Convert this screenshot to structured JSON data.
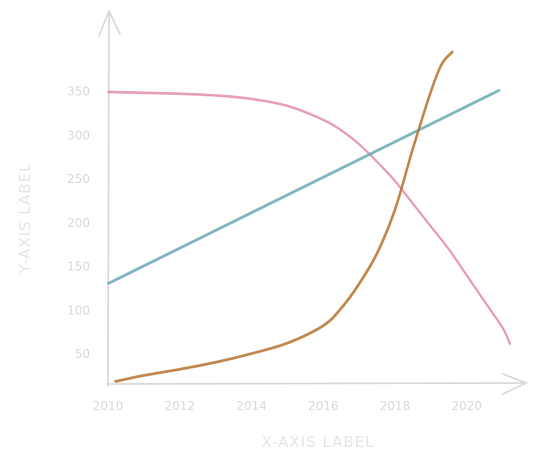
{
  "chart_data": {
    "type": "line",
    "title": "",
    "xlabel": "X-AXIS LABEL",
    "ylabel": "Y-AXIS LABEL",
    "xlim": [
      2010,
      2021.4
    ],
    "ylim": [
      17,
      400
    ],
    "x_ticks": [
      2010,
      2012,
      2014,
      2016,
      2018,
      2020
    ],
    "y_ticks": [
      50,
      100,
      150,
      200,
      250,
      300,
      350
    ],
    "grid": false,
    "legend": "none",
    "series": [
      {
        "color": "#e48fb0",
        "x": [
          2010,
          2011,
          2012,
          2013,
          2014,
          2015,
          2016,
          2016.5,
          2017,
          2017.5,
          2018,
          2018.5,
          2019,
          2019.5,
          2020,
          2020.5,
          2021,
          2021.2
        ],
        "y": [
          350,
          349,
          348,
          346,
          342,
          334,
          318,
          306,
          290,
          270,
          248,
          222,
          196,
          170,
          140,
          110,
          80,
          62
        ]
      },
      {
        "color": "#6aa9b0",
        "x": [
          2010,
          2020.9
        ],
        "y": [
          131,
          352
        ]
      },
      {
        "color": "#b8732e",
        "x": [
          2010.2,
          2011,
          2012,
          2013,
          2014,
          2015,
          2016,
          2016.5,
          2017,
          2017.5,
          2018,
          2018.5,
          2019,
          2019.3,
          2019.6
        ],
        "y": [
          19,
          26,
          33,
          41,
          51,
          63,
          83,
          103,
          131,
          166,
          216,
          286,
          351,
          382,
          396
        ]
      }
    ]
  }
}
